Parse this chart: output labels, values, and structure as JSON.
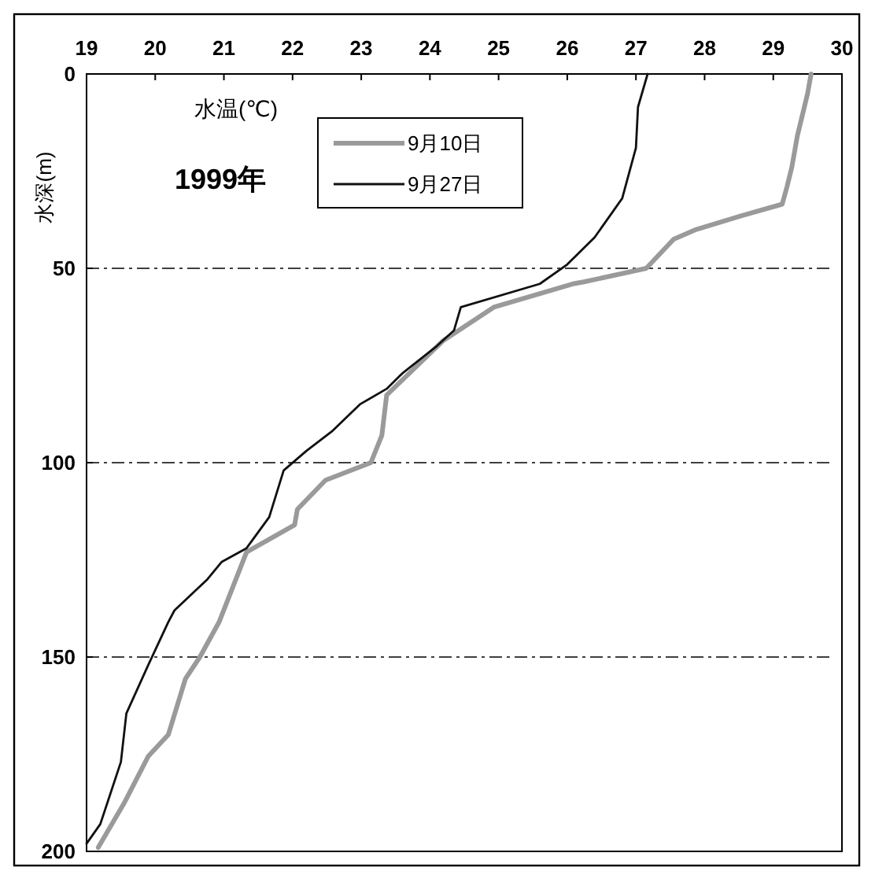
{
  "chart_data": {
    "type": "line",
    "xlabel": "水温(℃)",
    "ylabel": "水深(m)",
    "annotations": [
      "1999年"
    ],
    "xlim": [
      19,
      30
    ],
    "xticks": [
      19,
      20,
      21,
      22,
      23,
      24,
      25,
      26,
      27,
      28,
      29,
      30
    ],
    "ylim": [
      200,
      0
    ],
    "yticks": [
      0,
      50,
      100,
      150,
      200
    ],
    "grid": "y",
    "legend": "top",
    "line_style": "solid",
    "marker": "none",
    "series": [
      {
        "name": "9月10日",
        "color": "#9a9a9a",
        "x": [
          29.55,
          29.5,
          29.35,
          29.27,
          29.2,
          29.13,
          28.53,
          27.88,
          27.55,
          27.15,
          26.24,
          26.08,
          24.93,
          24.2,
          23.7,
          23.37,
          23.3,
          23.14,
          22.48,
          22.07,
          22.03,
          21.33,
          20.93,
          20.65,
          20.44,
          20.19,
          19.9,
          19.55,
          19.17
        ],
        "values": [
          0,
          5,
          16,
          24,
          29,
          33.5,
          36.5,
          40,
          42.5,
          50,
          53.5,
          54,
          60,
          68.5,
          77,
          82.6,
          93,
          100,
          104.5,
          112,
          116,
          123,
          141,
          150,
          155.6,
          170,
          175.5,
          187.5,
          199
        ]
      },
      {
        "name": "9月27日",
        "color": "#111111",
        "x": [
          27.17,
          27.03,
          27.0,
          26.8,
          26.4,
          26.0,
          25.6,
          24.45,
          24.35,
          24.1,
          23.6,
          23.37,
          22.98,
          22.57,
          22.2,
          21.87,
          21.66,
          21.33,
          20.97,
          20.76,
          20.28,
          20.19,
          19.9,
          19.58,
          19.5,
          19.2,
          19.0
        ],
        "values": [
          0,
          8.5,
          19,
          32,
          42,
          49,
          54,
          60,
          66,
          70,
          77,
          81,
          85,
          92,
          97,
          102,
          114,
          122,
          125.5,
          130,
          138,
          141,
          152,
          164.5,
          177,
          193,
          198
        ]
      }
    ]
  }
}
